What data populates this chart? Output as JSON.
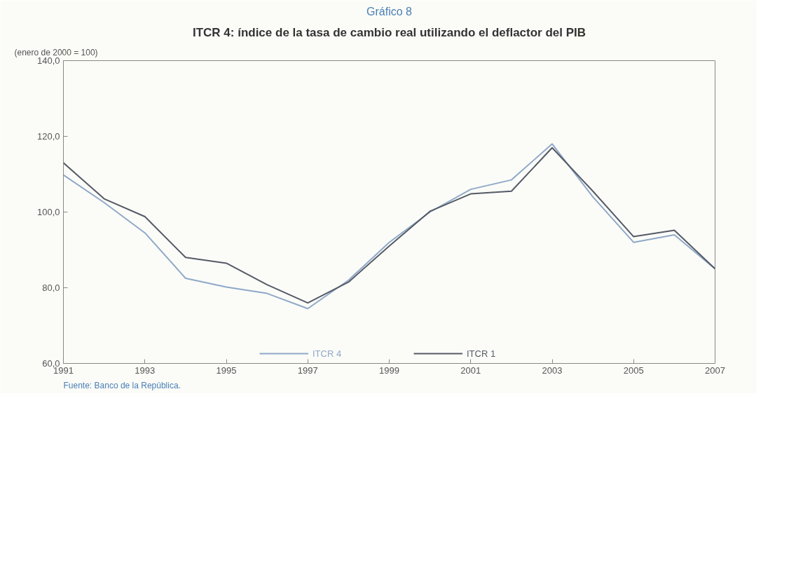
{
  "chart_data": {
    "type": "line",
    "title": "Gráfico 8",
    "subtitle": "ITCR 4: índice de la tasa de cambio real utilizando el deflactor del PIB",
    "ylabel": "(enero de 2000 = 100)",
    "x": [
      1991,
      1992,
      1993,
      1994,
      1995,
      1996,
      1997,
      1998,
      1999,
      2000,
      2001,
      2002,
      2003,
      2004,
      2005,
      2006,
      2007
    ],
    "series": [
      {
        "name": "ITCR 4",
        "color": "#8fa8c8",
        "values": [
          109.8,
          102.5,
          94.5,
          82.5,
          80.2,
          78.5,
          74.5,
          82,
          92,
          100,
          106,
          108.5,
          118,
          104,
          92,
          94,
          85
        ]
      },
      {
        "name": "ITCR 1",
        "color": "#555a66",
        "values": [
          113,
          103.5,
          98.8,
          88,
          86.5,
          80.8,
          76,
          81.5,
          91,
          100.2,
          104.8,
          105.5,
          117,
          105.5,
          93.5,
          95.2,
          85
        ]
      }
    ],
    "xlim": [
      1991,
      2007
    ],
    "xticks": [
      1991,
      1993,
      1995,
      1997,
      1999,
      2001,
      2003,
      2005,
      2007
    ],
    "ylim": [
      60,
      140
    ],
    "yticks": [
      {
        "value": 60,
        "label": "60,0"
      },
      {
        "value": 80,
        "label": "80,0"
      },
      {
        "value": 100,
        "label": "100,0"
      },
      {
        "value": 120,
        "label": "120,0"
      },
      {
        "value": 140,
        "label": "140,0"
      }
    ],
    "grid": false,
    "legend": "bottom",
    "marker": "none",
    "line_style": "solid",
    "annotations": [
      "Fuente: Banco de la República."
    ]
  }
}
